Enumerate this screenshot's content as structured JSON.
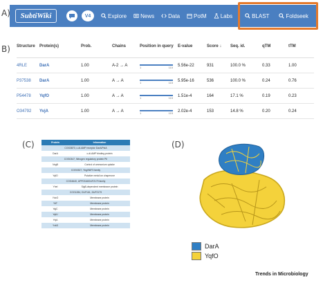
{
  "panel_labels": {
    "a": "A)",
    "b": "B)",
    "c": "(C)",
    "d": "(D)"
  },
  "navbar": {
    "logo": "SubtiWiki",
    "version": "V4",
    "items": [
      "Explore",
      "News",
      "Data",
      "PotM",
      "Labs",
      "BLAST",
      "Foldseek"
    ],
    "bg_color": "#4a7fc1",
    "highlight_color": "#e57a2c"
  },
  "results_table": {
    "headers": [
      "Structure",
      "Protein(s)",
      "Prob.",
      "Chains",
      "Position in query",
      "E-value",
      "Score",
      "Seq. id.",
      "qTM",
      "tTM"
    ],
    "rows": [
      {
        "structure": "4RLE",
        "protein": "DarA",
        "prob": "1.00",
        "chains": "A-2 → A",
        "pos_start": "1",
        "pos_end": "115",
        "evalue": "5.56e-22",
        "score": "931",
        "seqid": "100.0 %",
        "qtm": "0.33",
        "ttm": "1.00"
      },
      {
        "structure": "P37538",
        "protein": "DarA",
        "prob": "1.00",
        "chains": "A → A",
        "pos_start": "1",
        "pos_end": "115",
        "evalue": "5.95e-16",
        "score": "536",
        "seqid": "100.0 %",
        "qtm": "0.24",
        "ttm": "0.76"
      },
      {
        "structure": "P54478",
        "protein": "YqfO",
        "prob": "1.00",
        "chains": "A → A",
        "pos_start": "1",
        "pos_end": "115",
        "evalue": "1.51e-4",
        "score": "164",
        "seqid": "17.1 %",
        "qtm": "0.19",
        "ttm": "0.23"
      },
      {
        "structure": "O34792",
        "protein": "YvjA",
        "prob": "1.00",
        "chains": "A → A",
        "pos_start": "1",
        "pos_end": "115",
        "evalue": "2.02e-4",
        "score": "153",
        "seqid": "14.8 %",
        "qtm": "0.20",
        "ttm": "0.24"
      }
    ]
  },
  "protein_table": {
    "headers": [
      "Protein",
      "Information"
    ],
    "rows": [
      {
        "type": "section",
        "text": "COG3870, c-di-AMP receptor DarA/PstA"
      },
      {
        "type": "row",
        "protein": "DarA",
        "info": "c-di-AMP binding protein"
      },
      {
        "type": "section",
        "text": "COG0347, Nitrogen regulatory protein PII"
      },
      {
        "type": "row",
        "protein": "NrgB",
        "info": "Control of ammonium uptake"
      },
      {
        "type": "section",
        "text": "COG0327, YbgI/NIF3 family"
      },
      {
        "type": "row",
        "protein": "YqfO",
        "info": "Putative metal ion chaperone"
      },
      {
        "type": "section",
        "text": "COG4640, UPF0316/DUF2179 family"
      },
      {
        "type": "row",
        "protein": "YheI",
        "info": "SigB-dependent membrane protein"
      },
      {
        "type": "section",
        "text": "COG1284, DUF161, DUF2179"
      },
      {
        "type": "row",
        "protein": "YdcO",
        "info": "Membrane protein"
      },
      {
        "type": "row",
        "protein": "YitT",
        "info": "Membrane protein"
      },
      {
        "type": "row",
        "protein": "YqjC",
        "info": "Membrane protein"
      },
      {
        "type": "row",
        "protein": "YqfU",
        "info": "Membrane protein"
      },
      {
        "type": "row",
        "protein": "YvjA",
        "info": "Membrane protein"
      },
      {
        "type": "row",
        "protein": "YxkD",
        "info": "Membrane protein"
      }
    ]
  },
  "structure_panel": {
    "legend": [
      {
        "label": "DarA",
        "color": "#2f7fc4"
      },
      {
        "label": "YqfO",
        "color": "#f4d23b"
      }
    ]
  },
  "credit": "Trends in Microbiology"
}
